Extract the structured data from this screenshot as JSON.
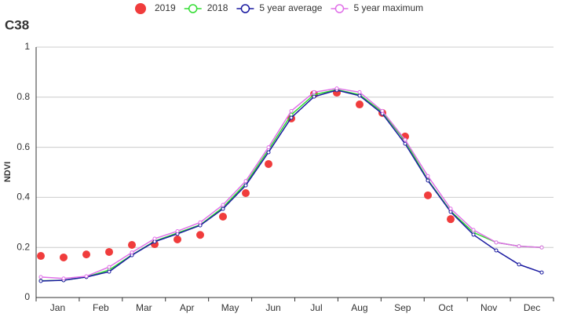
{
  "chart_data": {
    "type": "line",
    "title": "C38",
    "y_label": "NDVI",
    "categories": [
      null,
      null,
      null,
      null,
      null,
      null,
      null,
      null,
      null,
      null,
      null,
      null,
      null,
      null,
      null,
      null,
      null,
      null,
      null,
      null,
      null,
      null,
      null
    ],
    "month_labels": [
      "Jan",
      "Feb",
      "Mar",
      "Apr",
      "May",
      "Jun",
      "Jul",
      "Aug",
      "Sep",
      "Oct",
      "Nov",
      "Dec"
    ],
    "ylim": [
      0,
      1
    ],
    "yticks": [
      0,
      0.2,
      0.4,
      0.6,
      0.8,
      1
    ],
    "grid": true,
    "legend": "top",
    "series": [
      {
        "name": "2019",
        "color": "#f03c3c",
        "style": "dots",
        "values": [
          0.166,
          0.16,
          0.172,
          0.182,
          0.21,
          0.213,
          0.232,
          0.25,
          0.323,
          0.417,
          0.533,
          0.715,
          0.812,
          0.818,
          0.771,
          0.737,
          0.643,
          0.408,
          0.313,
          null,
          null,
          null,
          null
        ]
      },
      {
        "name": "2018",
        "color": "#33dd33",
        "style": "line",
        "values": [
          0.067,
          0.069,
          0.082,
          0.11,
          0.17,
          0.225,
          0.258,
          0.29,
          0.36,
          0.455,
          0.59,
          0.73,
          0.81,
          0.83,
          0.81,
          0.74,
          0.625,
          0.47,
          0.345,
          0.26,
          0.22,
          0.205,
          0.2
        ]
      },
      {
        "name": "5 year average",
        "color": "#1a1aa0",
        "style": "line",
        "values": [
          0.066,
          0.069,
          0.082,
          0.103,
          0.169,
          0.223,
          0.254,
          0.288,
          0.354,
          0.448,
          0.58,
          0.718,
          0.802,
          0.828,
          0.806,
          0.734,
          0.614,
          0.467,
          0.342,
          0.251,
          0.188,
          0.132,
          0.1
        ]
      },
      {
        "name": "5 year maximum",
        "color": "#e070e8",
        "style": "line",
        "values": [
          0.082,
          0.076,
          0.085,
          0.122,
          0.18,
          0.235,
          0.265,
          0.3,
          0.37,
          0.465,
          0.6,
          0.745,
          0.82,
          0.835,
          0.82,
          0.745,
          0.63,
          0.485,
          0.355,
          0.27,
          0.22,
          0.205,
          0.2
        ]
      }
    ]
  }
}
